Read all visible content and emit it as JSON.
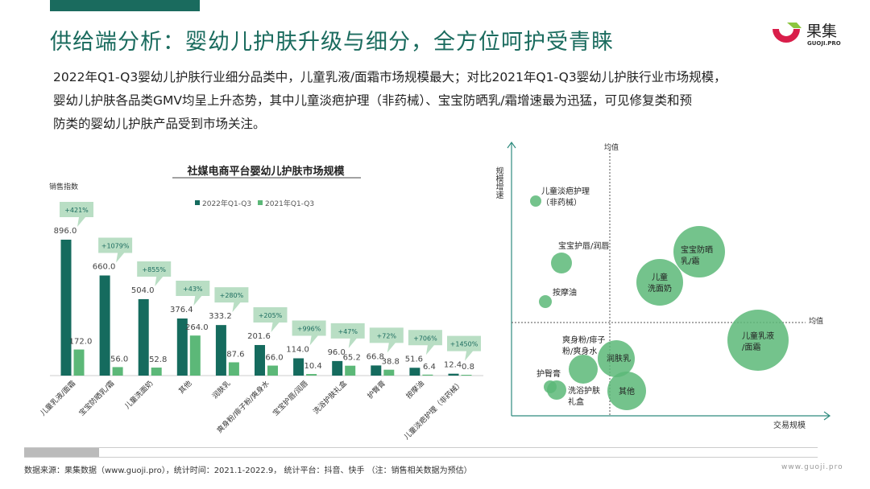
{
  "header": {
    "title": "供给端分析：婴幼儿护肤升级与细分，全方位呵护受青睐",
    "logo_text": "果集",
    "logo_sub": "GUOJI.PRO"
  },
  "intro": [
    "2022年Q1-Q3婴幼儿护肤行业细分品类中，儿童乳液/面霜市场规模最大；对比2021年Q1-Q3婴幼儿护肤行业市场规模，",
    "婴幼儿护肤各品类GMV均呈上升态势，其中儿童淡疤护理（非药械）、宝宝防晒乳/霜增速最为迅猛，可见修复类和预",
    "防类的婴幼儿护肤产品受到市场关注。"
  ],
  "chart_data": [
    {
      "type": "bar",
      "title": "社媒电商平台婴幼儿护肤市场规模",
      "ylabel": "销售指数",
      "ylim": [
        0,
        1000
      ],
      "grid": false,
      "legend_placement": "top",
      "colors": {
        "2022": "#156b5e",
        "2021": "#5cb878",
        "callout": "#b9dec4"
      },
      "categories": [
        "儿童乳液/面霜",
        "宝宝防晒乳/霜",
        "儿童洗面奶",
        "其他",
        "润肤乳",
        "爽身粉/痱子粉/爽身水",
        "宝宝护唇/润唇",
        "洗浴护肤礼盒",
        "护臀膏",
        "按摩油",
        "儿童淡疤护理（非药械）"
      ],
      "series": [
        {
          "name": "2022年Q1-Q3",
          "values": [
            896.0,
            660.0,
            504.0,
            376.4,
            333.2,
            201.6,
            114.0,
            96.0,
            66.8,
            51.6,
            12.4
          ]
        },
        {
          "name": "2021年Q1-Q3",
          "values": [
            172.0,
            56.0,
            52.8,
            264.0,
            87.6,
            66.0,
            10.4,
            65.2,
            38.8,
            6.4,
            0.8
          ]
        }
      ],
      "growth": [
        "+421%",
        "+1079%",
        "+855%",
        "+43%",
        "+280%",
        "+205%",
        "+996%",
        "+47%",
        "+72%",
        "+706%",
        "+1450%"
      ]
    },
    {
      "type": "scatter",
      "subtype": "bubble",
      "xlabel": "交易规模",
      "ylabel": "规模增速",
      "mean_label": "均值",
      "color": "#5cb878",
      "bubbles": [
        {
          "label": "儿童淡疤护理（非药械）",
          "quadrant": "low-size high-growth"
        },
        {
          "label": "宝宝护唇/润唇",
          "quadrant": "low-size high-growth"
        },
        {
          "label": "按摩油",
          "quadrant": "low-size high-growth"
        },
        {
          "label": "宝宝防晒乳/霜",
          "quadrant": "high-size high-growth"
        },
        {
          "label": "儿童洗面奶",
          "quadrant": "high-size high-growth"
        },
        {
          "label": "儿童乳液/面霜",
          "quadrant": "high-size low-growth"
        },
        {
          "label": "润肤乳",
          "quadrant": "low-growth"
        },
        {
          "label": "其他",
          "quadrant": "low-growth"
        },
        {
          "label": "爽身粉/痱子粉/爽身水",
          "quadrant": "low-size low-growth"
        },
        {
          "label": "护臀膏",
          "quadrant": "low-size low-growth"
        },
        {
          "label": "洗浴护肤礼盒",
          "quadrant": "low-size low-growth"
        }
      ]
    }
  ],
  "footer": {
    "source": "数据来源：果集数据（www.guoji.pro），统计时间：2021.1-2022.9，  统计平台：抖音、快手  （注：销售相关数据为预估）",
    "site": "www.guoji.pro"
  }
}
